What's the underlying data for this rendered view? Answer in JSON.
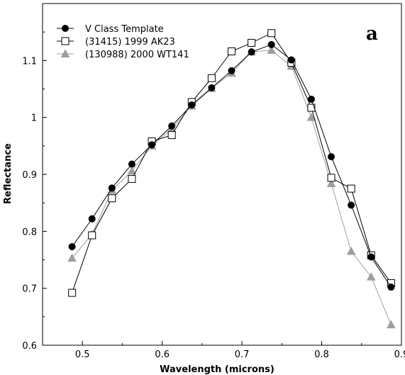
{
  "chart_data": {
    "type": "line",
    "title": "",
    "panel_label": "a",
    "xlabel": "Wavelength (microns)",
    "ylabel": "Reflectance",
    "xlim": [
      0.45,
      0.9
    ],
    "ylim": [
      0.6,
      1.2
    ],
    "x_ticks": [
      0.5,
      0.6,
      0.7,
      0.8,
      0.9
    ],
    "x_tick_labels": [
      "0.5",
      "0.6",
      "0.7",
      "0.8",
      "0.9"
    ],
    "y_ticks": [
      0.6,
      0.7,
      0.8,
      0.9,
      1.0,
      1.1
    ],
    "y_tick_labels": [
      "0.6",
      "0.7",
      "0.8",
      "0.9",
      "1",
      "1.1"
    ],
    "grid": false,
    "legend_position": "top-left",
    "series": [
      {
        "name": "V Class Template",
        "marker": "filled-circle",
        "color": "#000000",
        "x": [
          0.487,
          0.512,
          0.537,
          0.562,
          0.587,
          0.612,
          0.637,
          0.662,
          0.687,
          0.712,
          0.737,
          0.762,
          0.787,
          0.812,
          0.837,
          0.862,
          0.887
        ],
        "y": [
          0.773,
          0.822,
          0.876,
          0.918,
          0.952,
          0.985,
          1.022,
          1.052,
          1.082,
          1.115,
          1.128,
          1.101,
          1.032,
          0.931,
          0.846,
          0.755,
          0.702
        ]
      },
      {
        "name": "(31415) 1999 AK23",
        "marker": "open-square",
        "color": "#000000",
        "x": [
          0.487,
          0.512,
          0.537,
          0.562,
          0.587,
          0.612,
          0.637,
          0.662,
          0.687,
          0.712,
          0.737,
          0.762,
          0.787,
          0.812,
          0.837,
          0.862,
          0.887
        ],
        "y": [
          0.692,
          0.793,
          0.858,
          0.892,
          0.958,
          0.969,
          1.027,
          1.069,
          1.116,
          1.131,
          1.148,
          1.096,
          1.017,
          0.894,
          0.875,
          0.758,
          0.709
        ]
      },
      {
        "name": "(130988) 2000 WT141",
        "marker": "filled-triangle",
        "color": "#9e9e9e",
        "x": [
          0.487,
          0.512,
          0.537,
          0.562,
          0.587,
          0.612,
          0.637,
          0.662,
          0.687,
          0.712,
          0.737,
          0.762,
          0.787,
          0.812,
          0.837,
          0.862,
          0.887
        ],
        "y": [
          0.753,
          0.795,
          0.872,
          0.906,
          0.95,
          0.98,
          1.02,
          1.051,
          1.078,
          1.115,
          1.118,
          1.09,
          1.0,
          0.884,
          0.765,
          0.72,
          0.636
        ]
      }
    ]
  }
}
